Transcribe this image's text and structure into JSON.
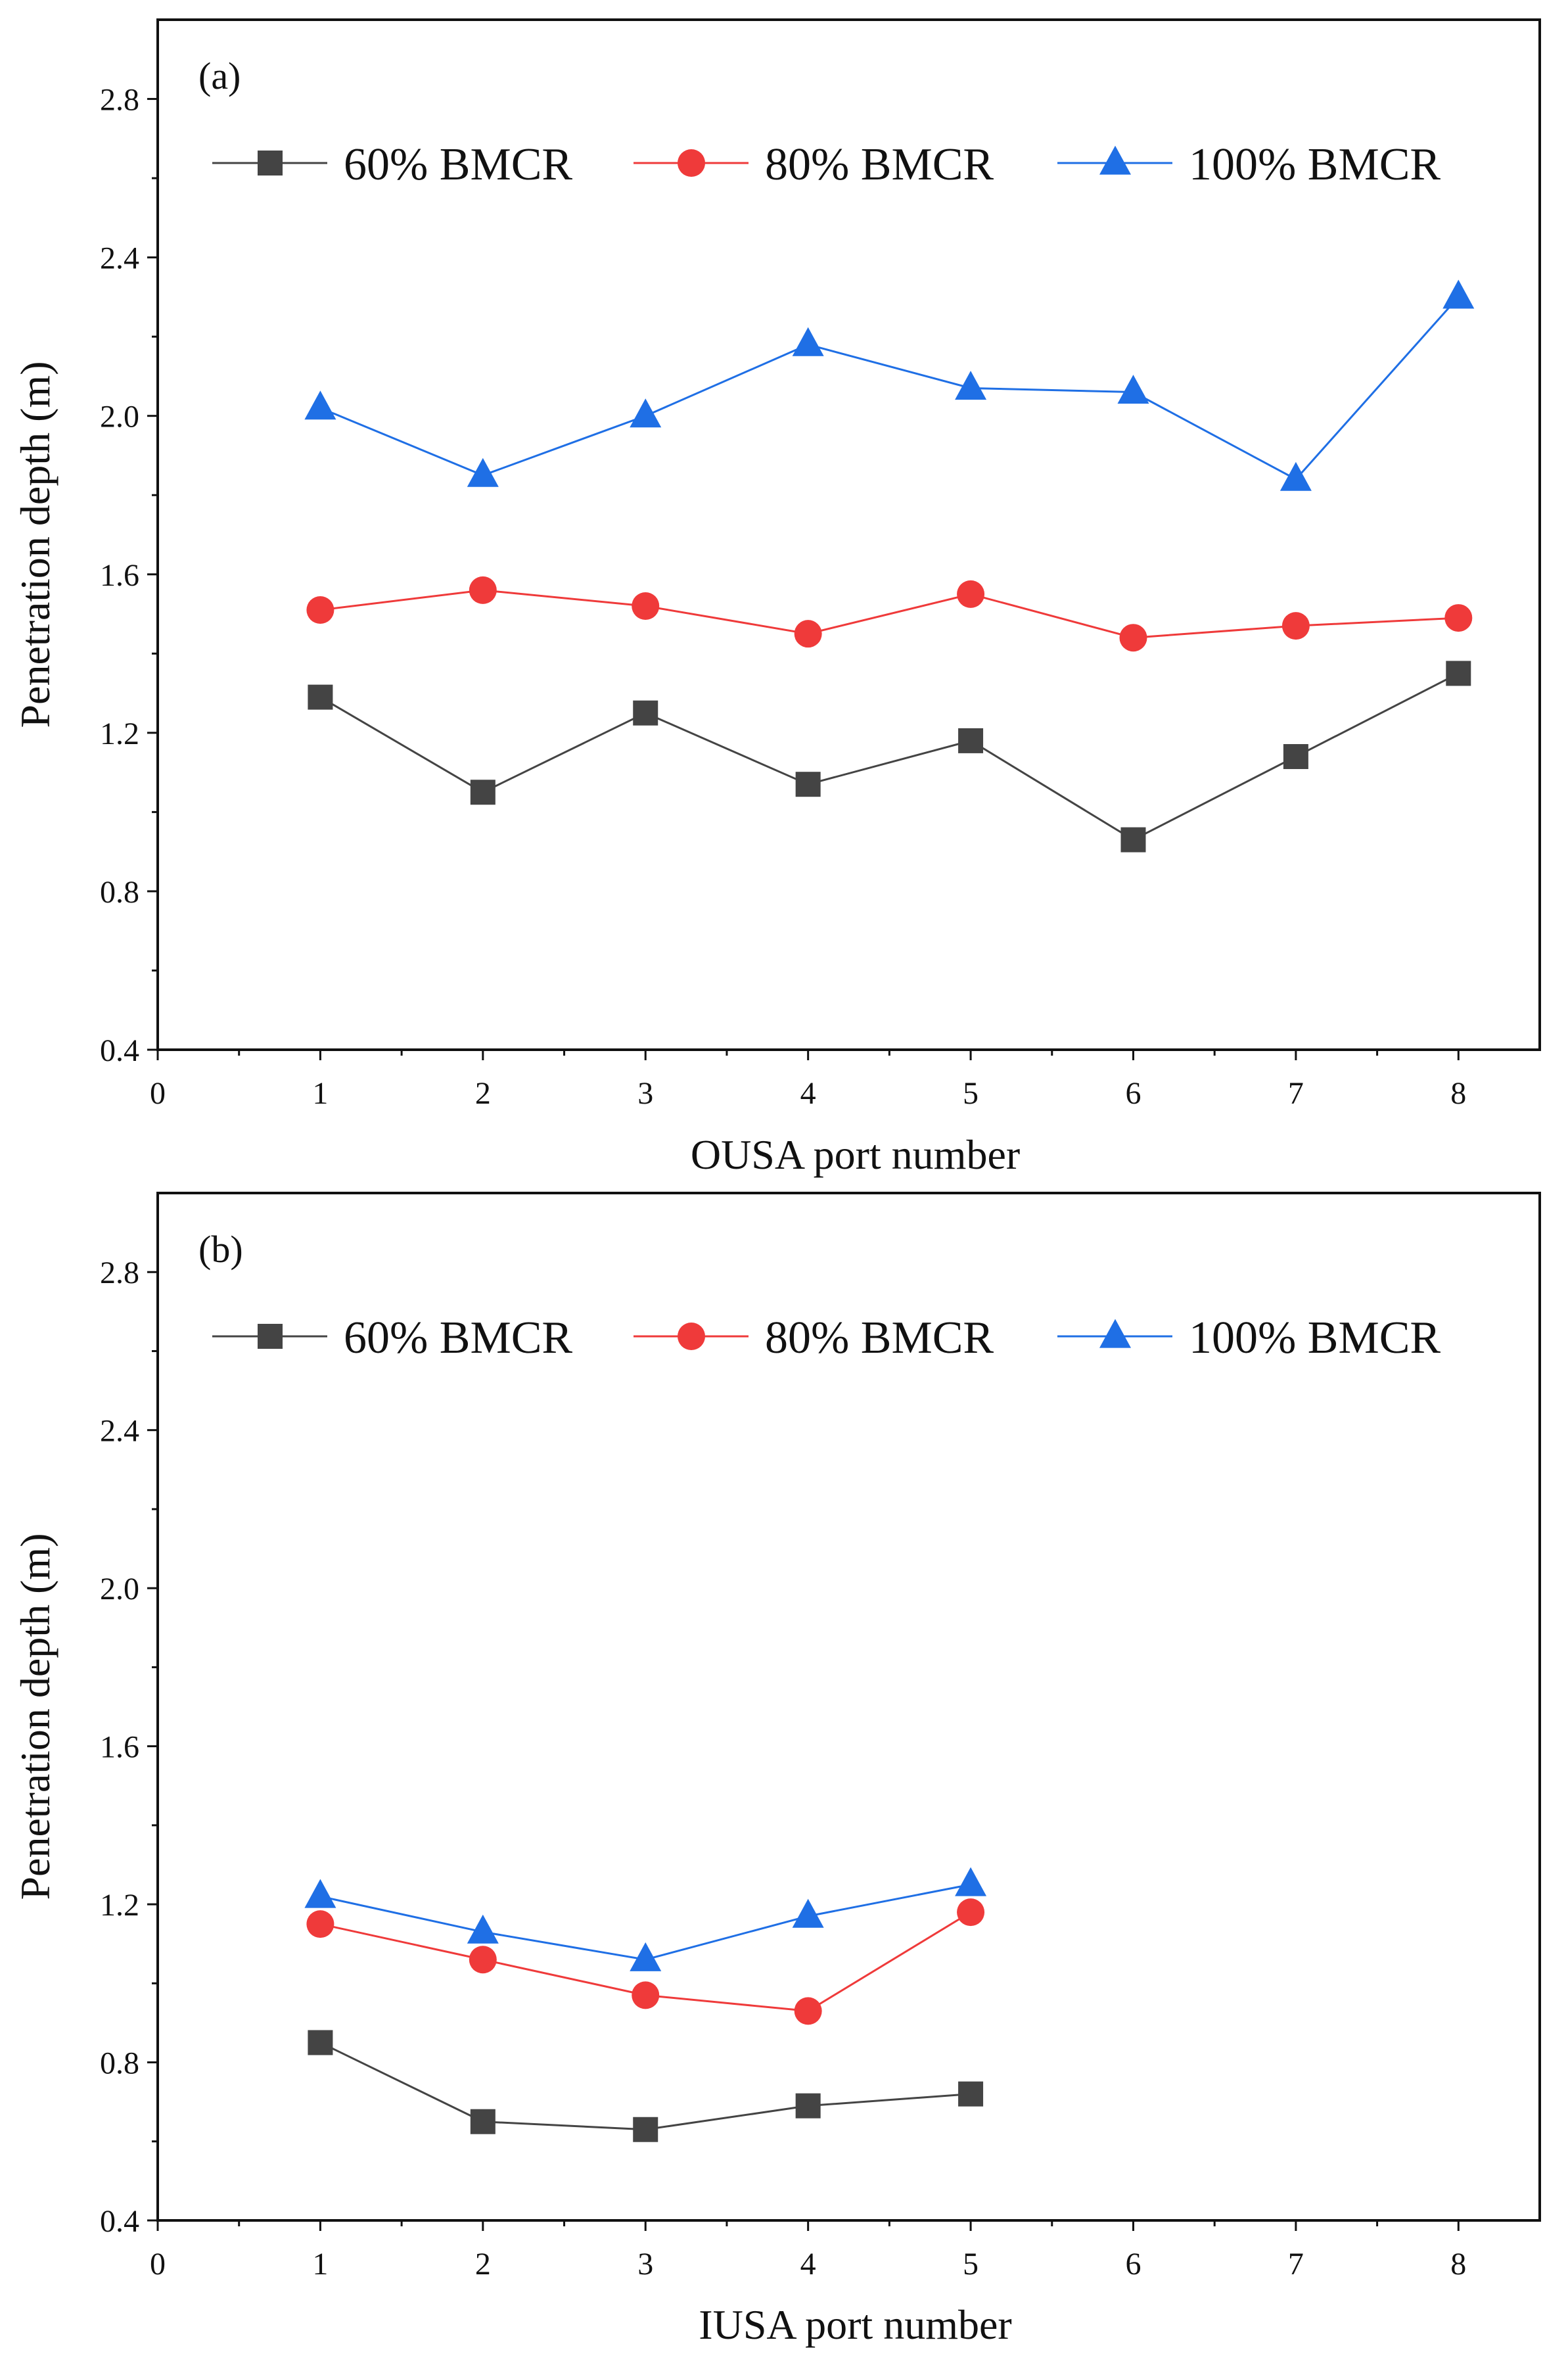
{
  "figure": {
    "background": "#ffffff"
  },
  "chart_data": [
    {
      "type": "line",
      "panel_label": "(a)",
      "xlabel": "OUSA port number",
      "ylabel": "Penetration depth (m)",
      "xlim": [
        0,
        8.5
      ],
      "ylim": [
        0.4,
        3.0
      ],
      "xticks": [
        0,
        1,
        2,
        3,
        4,
        5,
        6,
        7,
        8
      ],
      "yticks": [
        0.4,
        0.8,
        1.2,
        1.6,
        2.0,
        2.4,
        2.8
      ],
      "x": [
        1,
        2,
        3,
        4,
        5,
        6,
        7,
        8
      ],
      "legend_position": "top",
      "series": [
        {
          "name": "60% BMCR",
          "marker": "square",
          "color": "#444444",
          "values": [
            1.29,
            1.05,
            1.25,
            1.07,
            1.18,
            0.93,
            1.14,
            1.35
          ]
        },
        {
          "name": "80% BMCR",
          "marker": "circle",
          "color": "#ef3a3a",
          "values": [
            1.51,
            1.56,
            1.52,
            1.45,
            1.55,
            1.44,
            1.47,
            1.49
          ]
        },
        {
          "name": "100% BMCR",
          "marker": "triangle",
          "color": "#1f6fe5",
          "values": [
            2.02,
            1.85,
            2.0,
            2.18,
            2.07,
            2.06,
            1.84,
            2.3
          ]
        }
      ]
    },
    {
      "type": "line",
      "panel_label": "(b)",
      "xlabel": "IUSA port number",
      "ylabel": "Penetration depth (m)",
      "xlim": [
        0,
        8.5
      ],
      "ylim": [
        0.4,
        3.0
      ],
      "xticks": [
        0,
        1,
        2,
        3,
        4,
        5,
        6,
        7,
        8
      ],
      "yticks": [
        0.4,
        0.8,
        1.2,
        1.6,
        2.0,
        2.4,
        2.8
      ],
      "x": [
        1,
        2,
        3,
        4,
        5
      ],
      "legend_position": "top",
      "series": [
        {
          "name": "60% BMCR",
          "marker": "square",
          "color": "#444444",
          "values": [
            0.85,
            0.65,
            0.63,
            0.69,
            0.72
          ]
        },
        {
          "name": "80% BMCR",
          "marker": "circle",
          "color": "#ef3a3a",
          "values": [
            1.15,
            1.06,
            0.97,
            0.93,
            1.18
          ]
        },
        {
          "name": "100% BMCR",
          "marker": "triangle",
          "color": "#1f6fe5",
          "values": [
            1.22,
            1.13,
            1.06,
            1.17,
            1.25
          ]
        }
      ]
    }
  ]
}
